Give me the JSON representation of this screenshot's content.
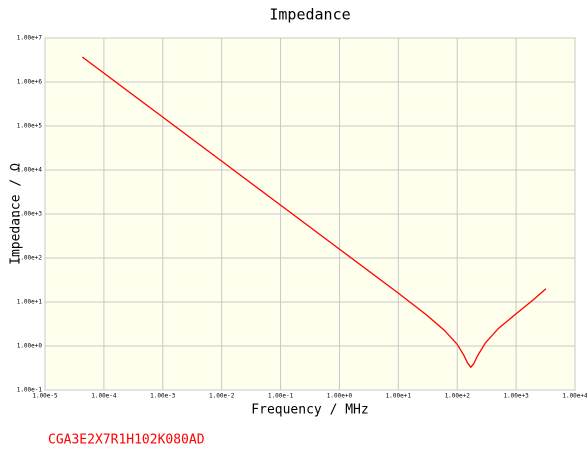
{
  "chart_data": {
    "type": "line",
    "title": "Impedance",
    "xlabel": "Frequency / MHz",
    "ylabel": "Impedance / Ω",
    "annotation": "CGA3E2X7R1H102K080AD",
    "xscale": "log",
    "yscale": "log",
    "grid": true,
    "color": "#ff0000",
    "x": [
      4.3e-05,
      0.0001,
      0.001,
      0.01,
      0.1,
      1,
      10,
      30,
      60,
      100,
      130,
      150,
      170,
      190,
      220,
      300,
      500,
      1000,
      2000,
      3200
    ],
    "values": [
      3700000,
      1590000,
      159000,
      15900,
      1590,
      159,
      15.9,
      5.1,
      2.3,
      1.09,
      0.61,
      0.41,
      0.33,
      0.39,
      0.59,
      1.17,
      2.5,
      5.4,
      11.5,
      20
    ],
    "xlim": [
      1e-05,
      10000
    ],
    "ylim": [
      0.1,
      10000000
    ],
    "xticks": [
      {
        "value": 1e-05,
        "label": "1.00e-5"
      },
      {
        "value": 0.0001,
        "label": "1.00e-4"
      },
      {
        "value": 0.001,
        "label": "1.00e-3"
      },
      {
        "value": 0.01,
        "label": "1.00e-2"
      },
      {
        "value": 0.1,
        "label": "1.00e-1"
      },
      {
        "value": 1,
        "label": "1.00e+0"
      },
      {
        "value": 10,
        "label": "1.00e+1"
      },
      {
        "value": 100,
        "label": "1.00e+2"
      },
      {
        "value": 1000,
        "label": "1.00e+3"
      },
      {
        "value": 10000,
        "label": "1.00e+4"
      }
    ],
    "yticks": [
      {
        "value": 0.1,
        "label": "1.00e-1"
      },
      {
        "value": 1,
        "label": "1.00e+0"
      },
      {
        "value": 10,
        "label": "1.00e+1"
      },
      {
        "value": 100,
        "label": "1.00e+2"
      },
      {
        "value": 1000,
        "label": "1.00e+3"
      },
      {
        "value": 10000,
        "label": "1.00e+4"
      },
      {
        "value": 100000,
        "label": "1.00e+5"
      },
      {
        "value": 1000000,
        "label": "1.00e+6"
      },
      {
        "value": 10000000,
        "label": "1.00e+7"
      }
    ]
  }
}
